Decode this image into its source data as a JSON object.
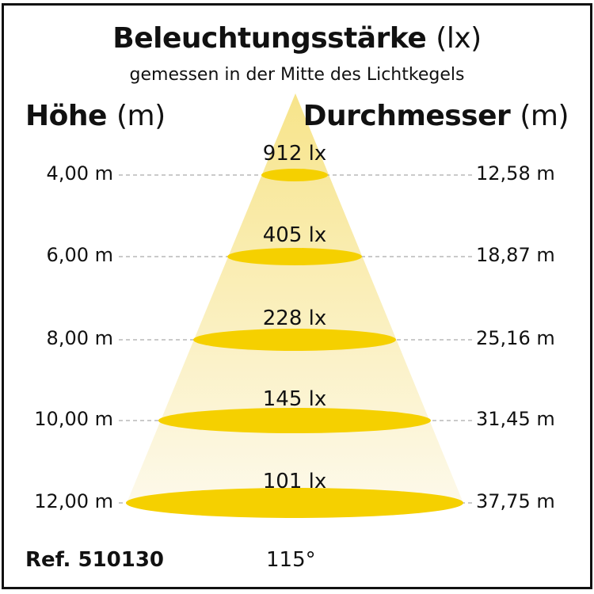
{
  "title": "Beleuchtungsstärke",
  "title_unit": "(lx)",
  "subtitle": "gemessen in der Mitte des Lichtkegels",
  "left_header": "Höhe",
  "left_header_unit": "(m)",
  "right_header": "Durchmesser",
  "right_header_unit": "(m)",
  "rows": [
    {
      "height": "4,00 m",
      "lux": "912 lx",
      "diameter": "12,58 m"
    },
    {
      "height": "6,00 m",
      "lux": "405 lx",
      "diameter": "18,87 m"
    },
    {
      "height": "8,00 m",
      "lux": "228 lx",
      "diameter": "25,16 m"
    },
    {
      "height": "10,00 m",
      "lux": "145 lx",
      "diameter": "31,45 m"
    },
    {
      "height": "12,00 m",
      "lux": "101 lx",
      "diameter": "37,75 m"
    }
  ],
  "reference": "Ref. 510130",
  "beam_angle": "115°",
  "colors": {
    "ellipse": "#f5d000",
    "cone_top": "#f7e48a",
    "cone_bottom": "#fdf8e6",
    "dash": "#aaaaaa",
    "border": "#111111"
  }
}
